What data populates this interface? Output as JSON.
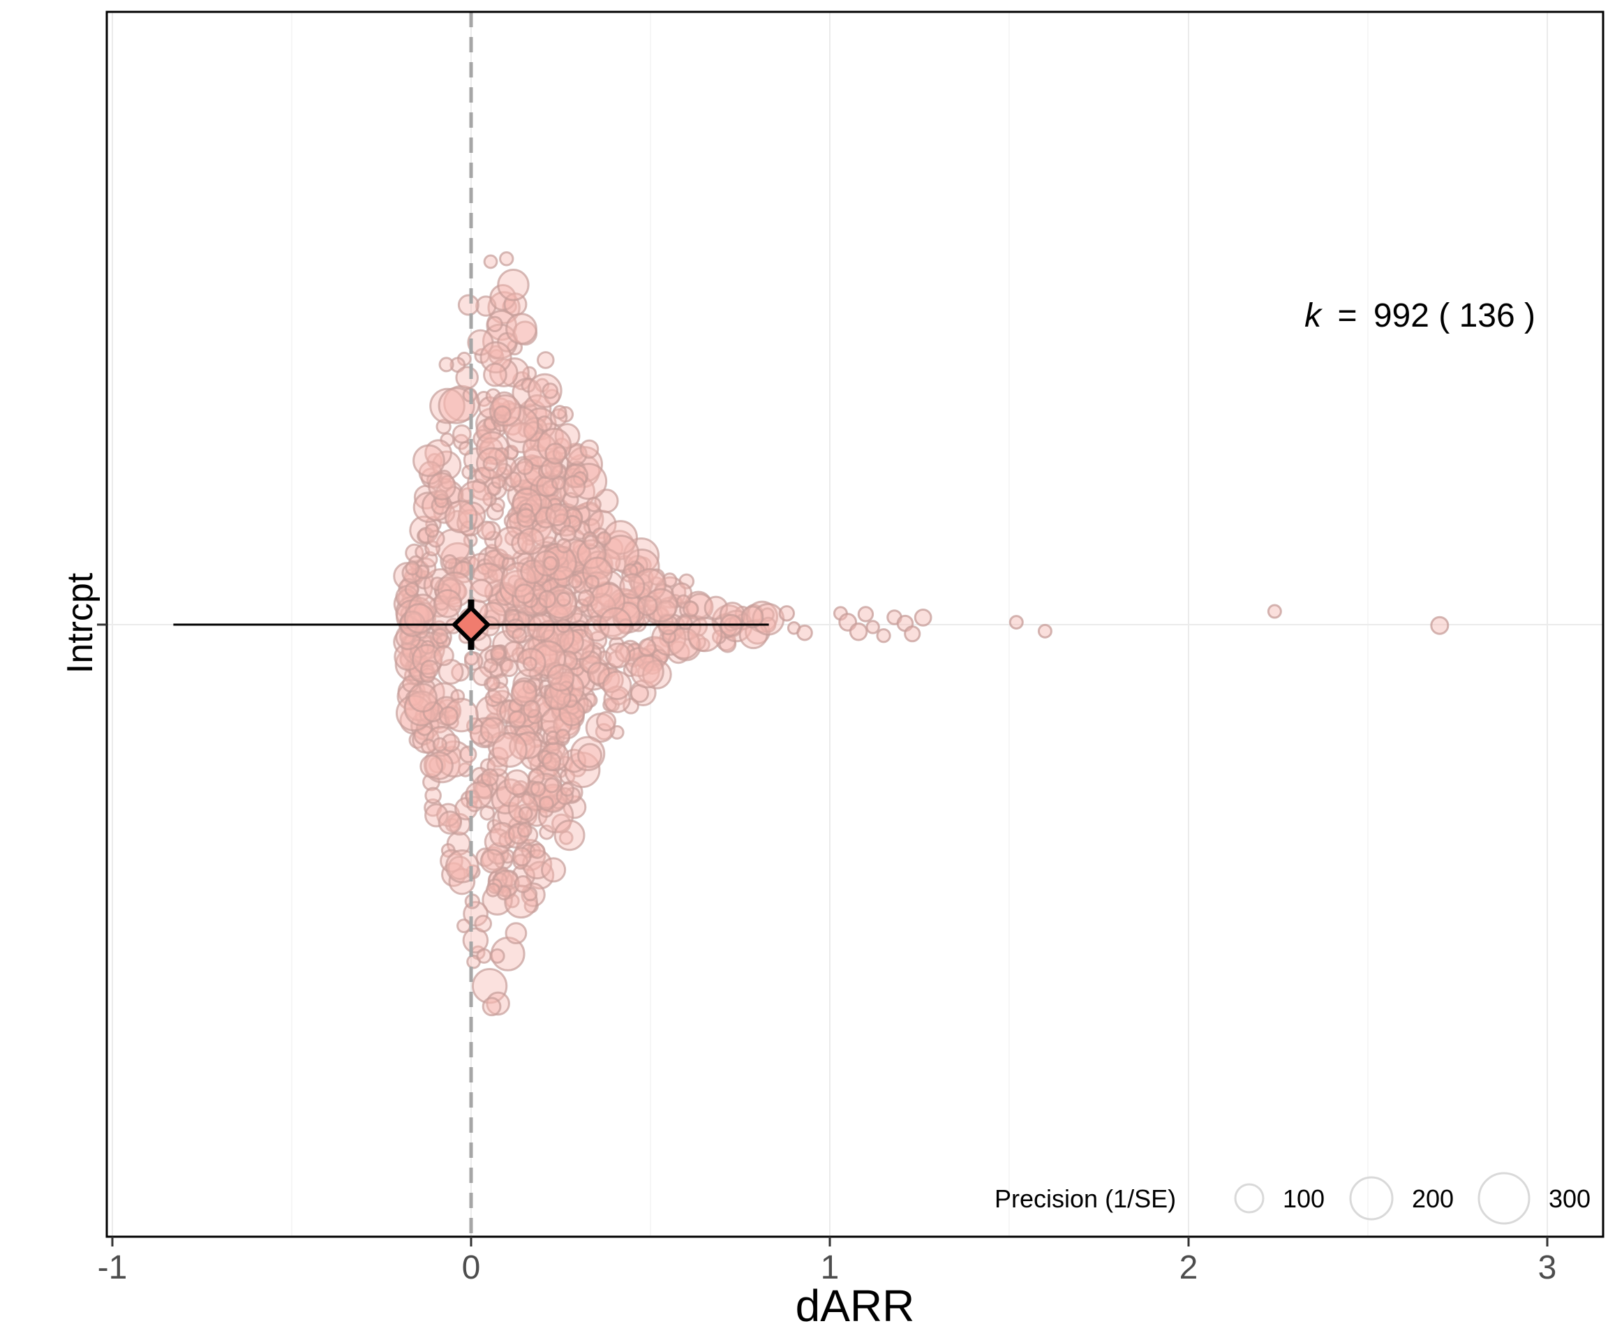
{
  "chart_data": {
    "type": "scatter",
    "subtype": "orchard-plot",
    "xlabel": "dARR",
    "ylabel": "Intrcpt",
    "xlim": [
      -1,
      3.16
    ],
    "x_ticks": [
      -1,
      0,
      1,
      2,
      3
    ],
    "x_tick_labels": [
      "-1",
      "0",
      "1",
      "2",
      "3"
    ],
    "y_categories": [
      "Intrcpt"
    ],
    "grid": true,
    "reference_line": {
      "x": 0,
      "style": "dashed",
      "color": "#a6a6a6"
    },
    "estimate": {
      "label": "Intrcpt",
      "mean": 0.0,
      "ci": [
        -0.02,
        0.02
      ],
      "prediction_interval": [
        -0.83,
        0.83
      ],
      "marker": "diamond",
      "color": "#f07c6e"
    },
    "annotation": {
      "prefix": "k",
      "equals": "=",
      "value": "992",
      "paren_value": "136",
      "position": "top-right"
    },
    "legend": {
      "title": "Precision (1/SE)",
      "position": "bottom-right",
      "entries": [
        {
          "label": "100",
          "value": 100
        },
        {
          "label": "200",
          "value": 200
        },
        {
          "label": "300",
          "value": 300
        }
      ]
    },
    "point_color": "#f5b8b1",
    "point_stroke": "#c59c98",
    "point_count_shown": 992,
    "outlier_x_values": [
      0.88,
      0.9,
      0.93,
      1.03,
      1.05,
      1.08,
      1.1,
      1.12,
      1.15,
      1.18,
      1.21,
      1.23,
      1.26,
      1.52,
      1.6,
      2.24,
      2.7
    ]
  }
}
